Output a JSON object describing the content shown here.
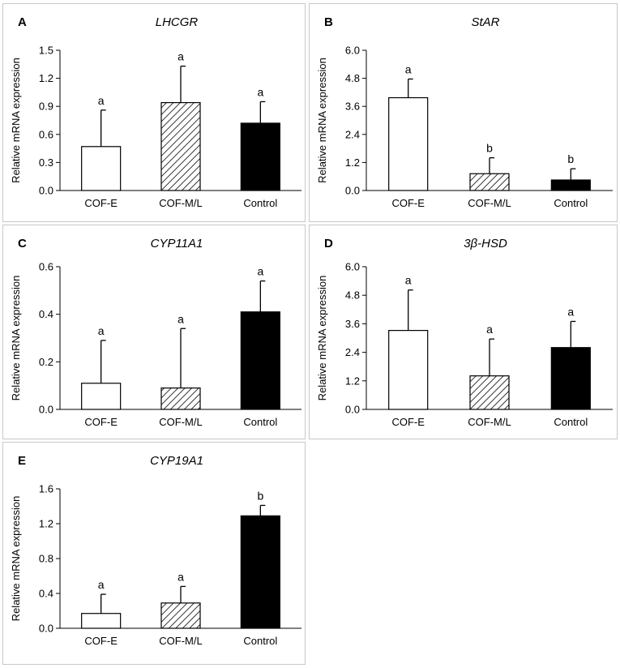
{
  "chart_data": [
    {
      "panel": "A",
      "type": "bar",
      "title": "LHCGR",
      "ylabel": "Relative mRNA expression",
      "xlabel": "",
      "categories": [
        "COF-E",
        "COF-M/L",
        "Control"
      ],
      "values": [
        0.47,
        0.94,
        0.72
      ],
      "errors": [
        0.39,
        0.39,
        0.23
      ],
      "letters": [
        "a",
        "a",
        "a"
      ],
      "fills": [
        "white",
        "hatch",
        "black"
      ],
      "yticks": [
        "0.0",
        "0.3",
        "0.6",
        "0.9",
        "1.2",
        "1.5"
      ],
      "ylim": [
        0,
        1.5
      ]
    },
    {
      "panel": "B",
      "type": "bar",
      "title": "StAR",
      "ylabel": "Relative mRNA expression",
      "xlabel": "",
      "categories": [
        "COF-E",
        "COF-M/L",
        "Control"
      ],
      "values": [
        3.97,
        0.72,
        0.45
      ],
      "errors": [
        0.8,
        0.68,
        0.48
      ],
      "letters": [
        "a",
        "b",
        "b"
      ],
      "fills": [
        "white",
        "hatch",
        "black"
      ],
      "yticks": [
        "0.0",
        "1.2",
        "2.4",
        "3.6",
        "4.8",
        "6.0"
      ],
      "ylim": [
        0,
        6.0
      ]
    },
    {
      "panel": "C",
      "type": "bar",
      "title": "CYP11A1",
      "ylabel": "Relative mRNA expression",
      "xlabel": "",
      "categories": [
        "COF-E",
        "COF-M/L",
        "Control"
      ],
      "values": [
        0.11,
        0.09,
        0.41
      ],
      "errors": [
        0.18,
        0.25,
        0.13
      ],
      "letters": [
        "a",
        "a",
        "a"
      ],
      "fills": [
        "white",
        "hatch",
        "black"
      ],
      "yticks": [
        "0.0",
        "0.2",
        "0.4",
        "0.6"
      ],
      "ylim": [
        0,
        0.6
      ]
    },
    {
      "panel": "D",
      "type": "bar",
      "title": "3β-HSD",
      "ylabel": "Relative mRNA expression",
      "xlabel": "",
      "categories": [
        "COF-E",
        "COF-M/L",
        "Control"
      ],
      "values": [
        3.32,
        1.41,
        2.6
      ],
      "errors": [
        1.7,
        1.55,
        1.1
      ],
      "letters": [
        "a",
        "a",
        "a"
      ],
      "fills": [
        "white",
        "hatch",
        "black"
      ],
      "yticks": [
        "0.0",
        "1.2",
        "2.4",
        "3.6",
        "4.8",
        "6.0"
      ],
      "ylim": [
        0,
        6.0
      ]
    },
    {
      "panel": "E",
      "type": "bar",
      "title": "CYP19A1",
      "ylabel": "Relative mRNA expression",
      "xlabel": "",
      "categories": [
        "COF-E",
        "COF-M/L",
        "Control"
      ],
      "values": [
        0.17,
        0.29,
        1.29
      ],
      "errors": [
        0.22,
        0.19,
        0.12
      ],
      "letters": [
        "a",
        "a",
        "b"
      ],
      "fills": [
        "white",
        "hatch",
        "black"
      ],
      "yticks": [
        "0.0",
        "0.4",
        "0.8",
        "1.2",
        "1.6"
      ],
      "ylim": [
        0,
        1.6
      ]
    }
  ]
}
